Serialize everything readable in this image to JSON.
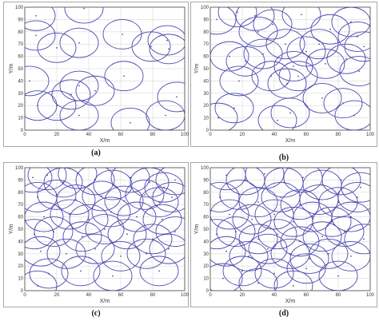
{
  "chart_data": [
    {
      "type": "scatter",
      "caption": "(a)",
      "xlabel": "X/m",
      "ylabel": "Y/m",
      "xlim": [
        0,
        100
      ],
      "ylim": [
        0,
        100
      ],
      "xticks": [
        "0",
        "20",
        "40",
        "60",
        "80",
        "100"
      ],
      "yticks": [
        "0",
        "10",
        "20",
        "30",
        "40",
        "50",
        "60",
        "70",
        "80",
        "90",
        "100"
      ],
      "grid": true,
      "circle_radius": 12,
      "circle_color": "#4b4baf",
      "x": [
        7,
        7,
        20,
        34,
        37,
        61,
        79,
        90,
        89,
        95,
        3,
        29,
        34,
        44,
        62,
        20,
        8,
        34,
        66,
        88
      ],
      "y": [
        93,
        77,
        67,
        71,
        99,
        78,
        68,
        66,
        73,
        27,
        40,
        29,
        36,
        32,
        44,
        20,
        20,
        12,
        6,
        12
      ]
    },
    {
      "type": "scatter",
      "caption": "(b)",
      "xlabel": "X/m",
      "ylabel": "Y/m",
      "xlim": [
        0,
        100
      ],
      "ylim": [
        0,
        100
      ],
      "xticks": [
        "0",
        "20",
        "40",
        "60",
        "80",
        "100"
      ],
      "yticks": [
        "0",
        "10",
        "20",
        "30",
        "40",
        "50",
        "60",
        "70",
        "80",
        "90",
        "100"
      ],
      "grid": true,
      "circle_radius": 12,
      "circle_color": "#4b4baf",
      "x": [
        4,
        17,
        28,
        30,
        39,
        47,
        57,
        68,
        75,
        88,
        92,
        96,
        12,
        22,
        33,
        52,
        60,
        72,
        85,
        93,
        18,
        38,
        48,
        55,
        5,
        15,
        42,
        70,
        90,
        50,
        83
      ],
      "y": [
        90,
        96,
        93,
        80,
        86,
        70,
        94,
        70,
        82,
        88,
        76,
        68,
        60,
        56,
        62,
        52,
        64,
        54,
        58,
        48,
        40,
        44,
        38,
        44,
        10,
        18,
        8,
        26,
        12,
        14,
        22
      ]
    },
    {
      "type": "scatter",
      "caption": "(c)",
      "xlabel": "X/m",
      "ylabel": "Y/m",
      "xlim": [
        0,
        100
      ],
      "ylim": [
        0,
        100
      ],
      "xticks": [
        "0",
        "20",
        "40",
        "60",
        "80",
        "100"
      ],
      "yticks": [
        "0",
        "10",
        "20",
        "30",
        "40",
        "50",
        "60",
        "70",
        "80",
        "90",
        "100"
      ],
      "grid": true,
      "circle_radius": 12,
      "circle_color": "#4b4baf",
      "x": [
        5,
        14,
        24,
        33,
        44,
        55,
        66,
        78,
        87,
        94,
        8,
        20,
        32,
        48,
        62,
        75,
        84,
        92,
        12,
        28,
        40,
        54,
        70,
        86,
        6,
        18,
        36,
        50,
        64,
        80,
        94,
        10,
        26,
        44,
        60,
        76,
        90,
        15,
        35,
        55,
        84,
        8
      ],
      "y": [
        92,
        94,
        88,
        95,
        90,
        86,
        92,
        88,
        84,
        90,
        76,
        78,
        74,
        77,
        73,
        78,
        72,
        76,
        60,
        62,
        58,
        64,
        60,
        58,
        46,
        48,
        44,
        50,
        46,
        42,
        48,
        32,
        30,
        34,
        28,
        30,
        34,
        14,
        16,
        12,
        16,
        4
      ],
      "x_more": [],
      "y_more": []
    },
    {
      "type": "scatter",
      "caption": "(d)",
      "xlabel": "X/m",
      "ylabel": "Y/m",
      "xlim": [
        0,
        100
      ],
      "ylim": [
        0,
        100
      ],
      "xticks": [
        "0",
        "20",
        "40",
        "60",
        "80",
        "100"
      ],
      "yticks": [
        "0",
        "10",
        "20",
        "30",
        "40",
        "50",
        "60",
        "70",
        "80",
        "90",
        "100"
      ],
      "grid": true,
      "circle_radius": 12,
      "circle_color": "#4b4baf",
      "x": [
        10,
        22,
        34,
        46,
        58,
        70,
        82,
        94,
        6,
        18,
        30,
        44,
        56,
        68,
        80,
        92,
        12,
        26,
        40,
        52,
        64,
        76,
        88,
        4,
        16,
        30,
        42,
        56,
        70,
        84,
        96,
        10,
        24,
        36,
        50,
        62,
        74,
        88,
        20,
        40,
        60,
        80,
        8,
        30,
        52
      ],
      "y": [
        94,
        90,
        95,
        88,
        92,
        86,
        90,
        84,
        76,
        78,
        72,
        76,
        70,
        74,
        72,
        76,
        62,
        58,
        62,
        56,
        60,
        56,
        60,
        46,
        48,
        42,
        46,
        40,
        44,
        48,
        42,
        32,
        28,
        34,
        30,
        26,
        30,
        28,
        16,
        14,
        18,
        12,
        10,
        6,
        4
      ]
    }
  ]
}
